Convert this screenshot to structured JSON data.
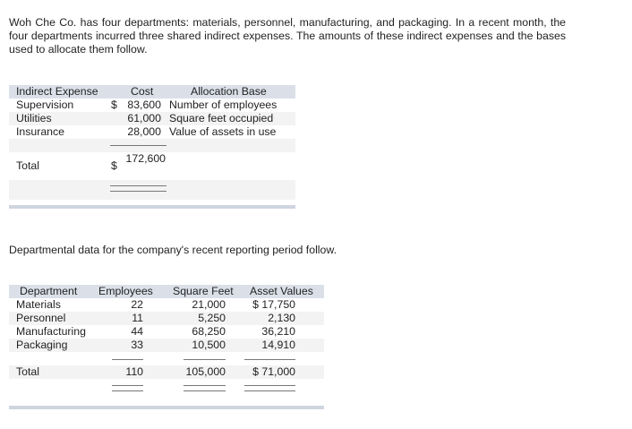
{
  "intro": "Woh Che Co. has four departments: materials, personnel, manufacturing, and packaging. In a recent month, the four departments incurred three shared indirect expenses. The amounts of these indirect expenses and the bases used to allocate them follow.",
  "expenses": {
    "headers": [
      "Indirect Expense",
      "Cost",
      "Allocation Base"
    ],
    "rows": [
      {
        "name": "Supervision",
        "dollar": "$",
        "cost": "83,600",
        "base": "Number of employees"
      },
      {
        "name": "Utilities",
        "dollar": "",
        "cost": "61,000",
        "base": "Square feet occupied"
      },
      {
        "name": "Insurance",
        "dollar": "",
        "cost": "28,000",
        "base": "Value of assets in use"
      }
    ],
    "total": {
      "label": "Total",
      "dollar": "$",
      "cost": "172,600"
    }
  },
  "dept_intro": "Departmental data for the company's recent reporting period follow.",
  "departments": {
    "headers": [
      "Department",
      "Employees",
      "Square Feet",
      "Asset Values"
    ],
    "rows": [
      {
        "name": "Materials",
        "employees": "22",
        "sqft": "21,000",
        "assets": "$ 17,750"
      },
      {
        "name": "Personnel",
        "employees": "11",
        "sqft": "5,250",
        "assets": "2,130"
      },
      {
        "name": "Manufacturing",
        "employees": "44",
        "sqft": "68,250",
        "assets": "36,210"
      },
      {
        "name": "Packaging",
        "employees": "33",
        "sqft": "10,500",
        "assets": "14,910"
      }
    ],
    "total": {
      "label": "Total",
      "employees": "110",
      "sqft": "105,000",
      "assets": "$ 71,000"
    }
  }
}
